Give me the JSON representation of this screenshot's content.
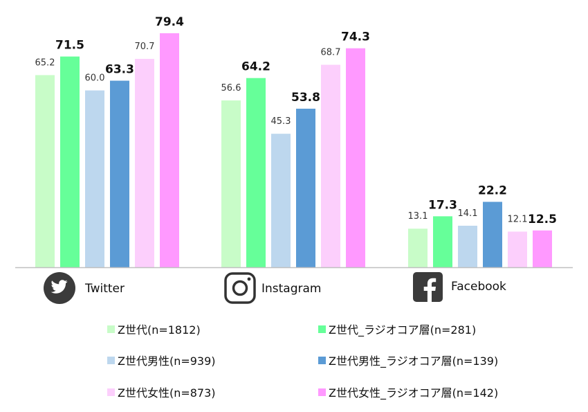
{
  "chart_data": {
    "type": "bar",
    "categories": [
      "Twitter",
      "Instagram",
      "Facebook"
    ],
    "series": [
      {
        "name": "Z世代(n=1812)",
        "values": [
          65.2,
          56.6,
          13.1
        ],
        "color": "#c8fcc8",
        "label_style": "normal"
      },
      {
        "name": "Z世代_ラジオコア層(n=281)",
        "values": [
          71.5,
          64.2,
          17.3
        ],
        "color": "#66ff99",
        "label_style": "bold"
      },
      {
        "name": "Z世代男性(n=939)",
        "values": [
          60.0,
          45.3,
          14.1
        ],
        "color": "#bdd7ee",
        "label_style": "normal"
      },
      {
        "name": "Z世代男性_ラジオコア層(n=139)",
        "values": [
          63.3,
          53.8,
          22.2
        ],
        "color": "#5b9bd5",
        "label_style": "bold"
      },
      {
        "name": "Z世代女性(n=873)",
        "values": [
          70.7,
          68.7,
          12.1
        ],
        "color": "#fccffc",
        "label_style": "normal"
      },
      {
        "name": "Z世代女性_ラジオコア層(n=142)",
        "values": [
          79.4,
          74.3,
          12.5
        ],
        "color": "#ff99ff",
        "label_style": "bold"
      }
    ],
    "value_labels": [
      [
        "65.2",
        "56.6",
        "13.1"
      ],
      [
        "71.5",
        "64.2",
        "17.3"
      ],
      [
        "60.0",
        "45.3",
        "14.1"
      ],
      [
        "63.3",
        "53.8",
        "22.2"
      ],
      [
        "70.7",
        "68.7",
        "12.1"
      ],
      [
        "79.4",
        "74.3",
        "12.5"
      ]
    ],
    "category_icons": [
      "twitter-icon",
      "instagram-icon",
      "facebook-icon"
    ],
    "ylim": [
      0,
      80
    ],
    "grid": false,
    "legend_position": "bottom"
  }
}
